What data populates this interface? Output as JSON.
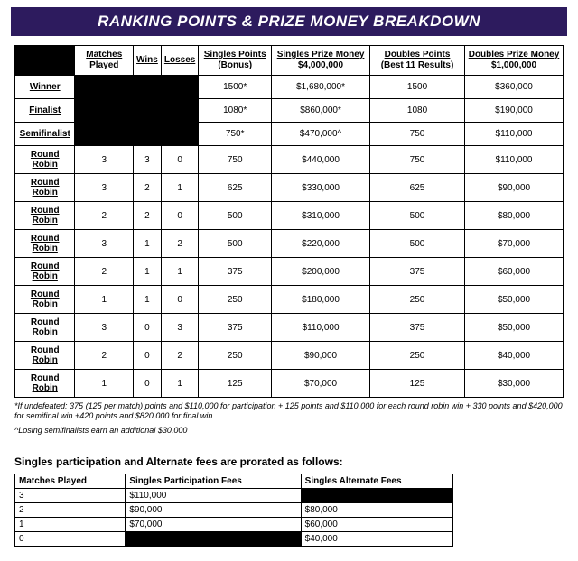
{
  "banner": "RANKING POINTS & PRIZE MONEY BREAKDOWN",
  "main": {
    "headers": [
      "Matches Played",
      "Wins",
      "Losses",
      "Singles Points (Bonus)",
      "Singles Prize Money $4,000,000",
      "Doubles Points (Best 11 Results)",
      "Doubles Prize Money $1,000,000"
    ],
    "rows": [
      {
        "label": "Winner",
        "mp": null,
        "w": null,
        "l": null,
        "sp": "1500*",
        "spm": "$1,680,000*",
        "dp": "1500",
        "dpm": "$360,000"
      },
      {
        "label": "Finalist",
        "mp": null,
        "w": null,
        "l": null,
        "sp": "1080*",
        "spm": "$860,000*",
        "dp": "1080",
        "dpm": "$190,000"
      },
      {
        "label": "Semifinalist",
        "mp": null,
        "w": null,
        "l": null,
        "sp": "750*",
        "spm": "$470,000^",
        "dp": "750",
        "dpm": "$110,000"
      },
      {
        "label": "Round Robin",
        "mp": "3",
        "w": "3",
        "l": "0",
        "sp": "750",
        "spm": "$440,000",
        "dp": "750",
        "dpm": "$110,000"
      },
      {
        "label": "Round Robin",
        "mp": "3",
        "w": "2",
        "l": "1",
        "sp": "625",
        "spm": "$330,000",
        "dp": "625",
        "dpm": "$90,000"
      },
      {
        "label": "Round Robin",
        "mp": "2",
        "w": "2",
        "l": "0",
        "sp": "500",
        "spm": "$310,000",
        "dp": "500",
        "dpm": "$80,000"
      },
      {
        "label": "Round Robin",
        "mp": "3",
        "w": "1",
        "l": "2",
        "sp": "500",
        "spm": "$220,000",
        "dp": "500",
        "dpm": "$70,000"
      },
      {
        "label": "Round Robin",
        "mp": "2",
        "w": "1",
        "l": "1",
        "sp": "375",
        "spm": "$200,000",
        "dp": "375",
        "dpm": "$60,000"
      },
      {
        "label": "Round Robin",
        "mp": "1",
        "w": "1",
        "l": "0",
        "sp": "250",
        "spm": "$180,000",
        "dp": "250",
        "dpm": "$50,000"
      },
      {
        "label": "Round Robin",
        "mp": "3",
        "w": "0",
        "l": "3",
        "sp": "375",
        "spm": "$110,000",
        "dp": "375",
        "dpm": "$50,000"
      },
      {
        "label": "Round Robin",
        "mp": "2",
        "w": "0",
        "l": "2",
        "sp": "250",
        "spm": "$90,000",
        "dp": "250",
        "dpm": "$40,000"
      },
      {
        "label": "Round Robin",
        "mp": "1",
        "w": "0",
        "l": "1",
        "sp": "125",
        "spm": "$70,000",
        "dp": "125",
        "dpm": "$30,000"
      }
    ]
  },
  "footnote1": "*If undefeated: 375 (125 per match) points and $110,000 for participation + 125 points and $110,000 for each round robin win + 330 points and $420,000 for semifinal win +420 points and $820,000 for final win",
  "footnote2": "^Losing semifinalists earn an additional $30,000",
  "subhead": "Singles participation and Alternate fees are prorated as follows:",
  "fees": {
    "headers": [
      "Matches Played",
      "Singles Participation Fees",
      "Singles Alternate Fees"
    ],
    "rows": [
      {
        "mp": "3",
        "spf": "$110,000",
        "saf": null
      },
      {
        "mp": "2",
        "spf": "$90,000",
        "saf": "$80,000"
      },
      {
        "mp": "1",
        "spf": "$70,000",
        "saf": "$60,000"
      },
      {
        "mp": "0",
        "spf": null,
        "saf": "$40,000"
      }
    ]
  },
  "colors": {
    "banner_bg": "#2d1b5e",
    "banner_fg": "#ffffff",
    "black": "#000000"
  }
}
